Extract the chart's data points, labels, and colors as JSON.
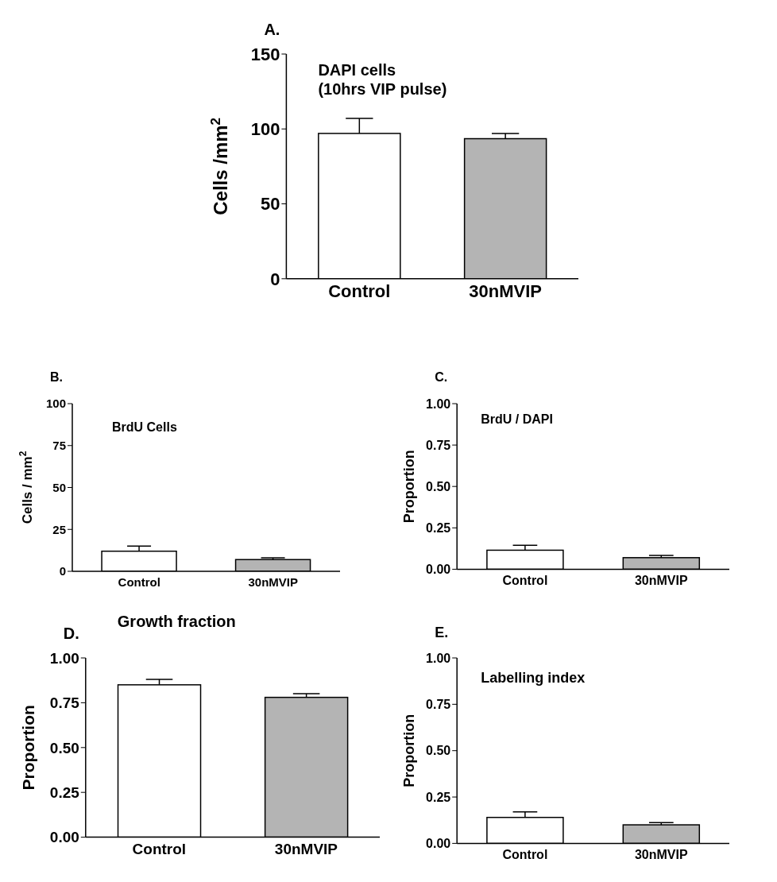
{
  "chart_data": [
    {
      "type": "bar",
      "title": "DAPI cells\n(10hrs VIP pulse)",
      "ylabel": "Cells /mm$^{2}$",
      "annotations": [
        "A."
      ],
      "categories": [
        "Control",
        "30nMVIP"
      ],
      "values": [
        97,
        93.5
      ],
      "errors": [
        [
          97,
          107
        ],
        [
          93.5,
          97
        ]
      ],
      "colors": [
        "#ffffff",
        "#b4b4b4"
      ],
      "ylim": [
        0,
        150
      ],
      "yticks": [
        0,
        50,
        100,
        150
      ]
    },
    {
      "type": "bar",
      "title": "BrdU Cells",
      "ylabel": "Cells / mm$^{2}$",
      "annotations": [
        "B."
      ],
      "categories": [
        "Control",
        "30nMVIP"
      ],
      "values": [
        12,
        7
      ],
      "errors": [
        [
          12,
          15
        ],
        [
          7,
          8
        ]
      ],
      "colors": [
        "#ffffff",
        "#b4b4b4"
      ],
      "ylim": [
        0,
        100
      ],
      "yticks": [
        0,
        25,
        50,
        75,
        100
      ]
    },
    {
      "type": "bar",
      "title": "BrdU / DAPI",
      "ylabel": "Proportion",
      "annotations": [
        "C."
      ],
      "categories": [
        "Control",
        "30nMVIP"
      ],
      "values": [
        0.115,
        0.07
      ],
      "errors": [
        [
          0.115,
          0.145
        ],
        [
          0.07,
          0.083
        ]
      ],
      "colors": [
        "#ffffff",
        "#b4b4b4"
      ],
      "ylim": [
        0,
        1
      ],
      "yticks": [
        {
          "value": 0,
          "label": "0.00"
        },
        {
          "value": 0.25,
          "label": "0.25"
        },
        {
          "value": 0.5,
          "label": "0.50"
        },
        {
          "value": 0.75,
          "label": "0.75"
        },
        {
          "value": 1,
          "label": "1.00"
        }
      ]
    },
    {
      "type": "bar",
      "title": "Growth fraction",
      "ylabel": "Proportion",
      "annotations": [
        "D."
      ],
      "categories": [
        "Control",
        "30nMVIP"
      ],
      "values": [
        0.85,
        0.78
      ],
      "errors": [
        [
          0.85,
          0.88
        ],
        [
          0.78,
          0.8
        ]
      ],
      "colors": [
        "#ffffff",
        "#b4b4b4"
      ],
      "ylim": [
        0,
        1
      ],
      "yticks": [
        {
          "value": 0,
          "label": "0.00"
        },
        {
          "value": 0.25,
          "label": "0.25"
        },
        {
          "value": 0.5,
          "label": "0.50"
        },
        {
          "value": 0.75,
          "label": "0.75"
        },
        {
          "value": 1,
          "label": "1.00"
        }
      ]
    },
    {
      "type": "bar",
      "title": "Labelling index",
      "ylabel": "Proportion",
      "annotations": [
        "E."
      ],
      "categories": [
        "Control",
        "30nMVIP"
      ],
      "values": [
        0.14,
        0.1
      ],
      "errors": [
        [
          0.14,
          0.17
        ],
        [
          0.1,
          0.112
        ]
      ],
      "colors": [
        "#ffffff",
        "#b4b4b4"
      ],
      "ylim": [
        0,
        1
      ],
      "yticks": [
        {
          "value": 0,
          "label": "0.00"
        },
        {
          "value": 0.25,
          "label": "0.25"
        },
        {
          "value": 0.5,
          "label": "0.50"
        },
        {
          "value": 0.75,
          "label": "0.75"
        },
        {
          "value": 1,
          "label": "1.00"
        }
      ]
    }
  ]
}
